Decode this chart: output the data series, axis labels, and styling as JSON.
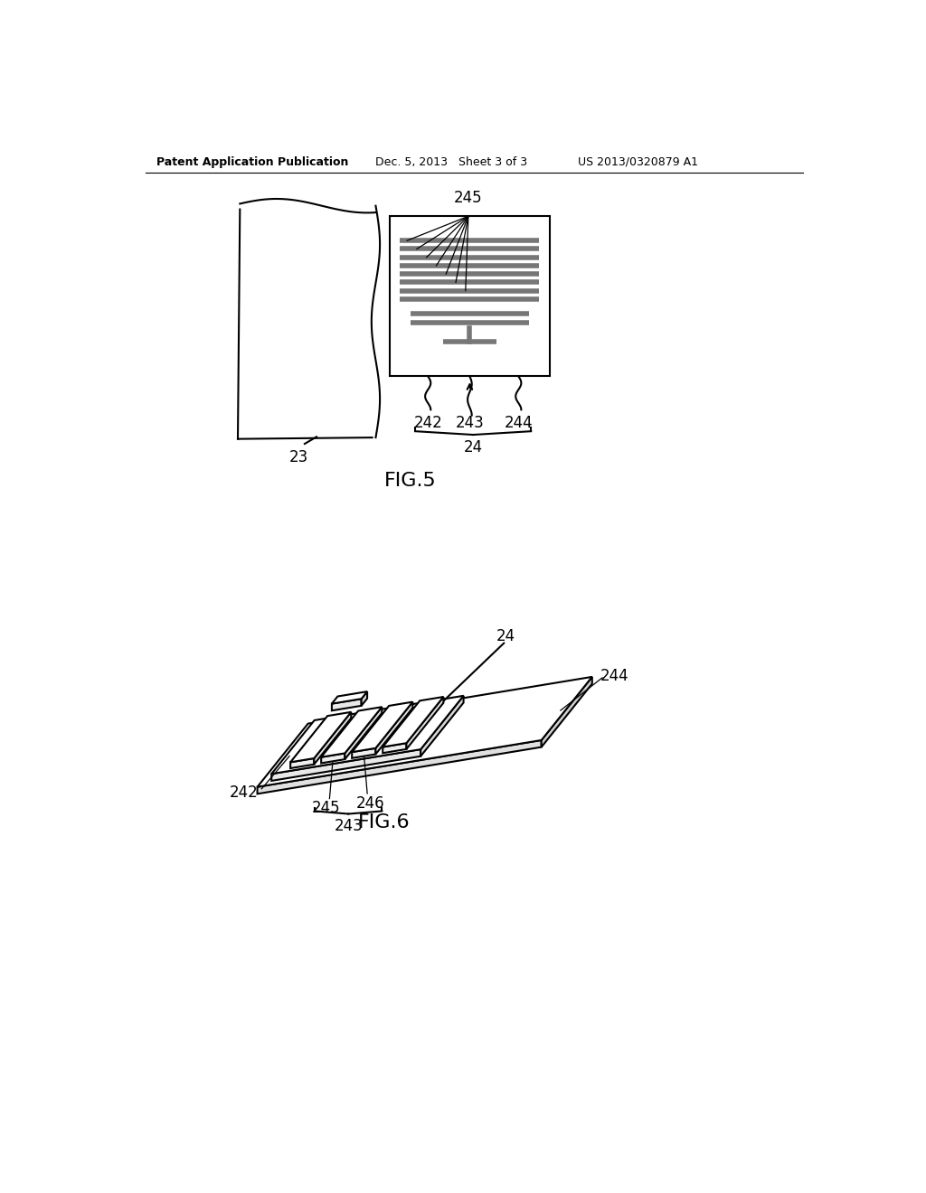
{
  "bg_color": "#ffffff",
  "line_color": "#000000",
  "gray_fill": "#888888",
  "header_left": "Patent Application Publication",
  "header_mid": "Dec. 5, 2013   Sheet 3 of 3",
  "header_right": "US 2013/0320879 A1",
  "fig5_label": "FIG.5",
  "fig6_label": "FIG.6",
  "label_23": "23",
  "label_24": "24",
  "label_242": "242",
  "label_243": "243",
  "label_244": "244",
  "label_245": "245",
  "label_246": "246"
}
